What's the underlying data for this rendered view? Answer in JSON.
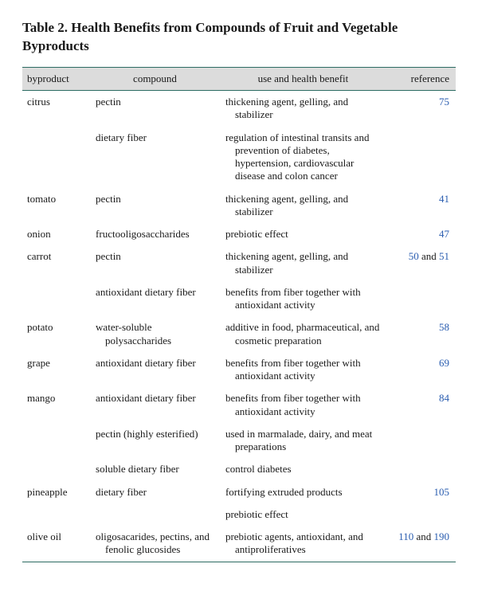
{
  "title": "Table 2. Health Benefits from Compounds of Fruit and Vegetable Byproducts",
  "columns": [
    "byproduct",
    "compound",
    "use and health benefit",
    "reference"
  ],
  "colors": {
    "rule": "#2c6b62",
    "header_bg": "#dcdcdc",
    "link": "#2a5db0",
    "text": "#1a1a1a",
    "background": "#ffffff"
  },
  "typography": {
    "title_fontsize_pt": 13,
    "body_fontsize_pt": 10,
    "font_family": "Georgia / serif"
  },
  "rows": [
    {
      "byproduct": "citrus",
      "compound": "pectin",
      "use": "thickening agent, gelling, and stabilizer",
      "reference": [
        {
          "t": "link",
          "v": "75"
        }
      ]
    },
    {
      "byproduct": "",
      "compound": "dietary fiber",
      "use": "regulation of intestinal transits and prevention of diabetes, hypertension, cardiovascular disease and colon cancer",
      "reference": []
    },
    {
      "byproduct": "tomato",
      "compound": "pectin",
      "use": "thickening agent, gelling, and stabilizer",
      "reference": [
        {
          "t": "link",
          "v": "41"
        }
      ]
    },
    {
      "byproduct": "onion",
      "compound": "fructooligosaccharides",
      "use": "prebiotic effect",
      "reference": [
        {
          "t": "link",
          "v": "47"
        }
      ]
    },
    {
      "byproduct": "carrot",
      "compound": "pectin",
      "use": "thickening agent, gelling, and stabilizer",
      "reference": [
        {
          "t": "link",
          "v": "50"
        },
        {
          "t": "text",
          "v": " and "
        },
        {
          "t": "link",
          "v": "51"
        }
      ]
    },
    {
      "byproduct": "",
      "compound": "antioxidant dietary fiber",
      "use": "benefits from fiber together with antioxidant activity",
      "reference": []
    },
    {
      "byproduct": "potato",
      "compound": "water-soluble polysaccharides",
      "use": "additive in food, pharmaceutical, and cosmetic preparation",
      "reference": [
        {
          "t": "link",
          "v": "58"
        }
      ]
    },
    {
      "byproduct": "grape",
      "compound": "antioxidant dietary fiber",
      "use": "benefits from fiber together with antioxidant activity",
      "reference": [
        {
          "t": "link",
          "v": "69"
        }
      ]
    },
    {
      "byproduct": "mango",
      "compound": "antioxidant dietary fiber",
      "use": "benefits from fiber together with antioxidant activity",
      "reference": [
        {
          "t": "link",
          "v": "84"
        }
      ]
    },
    {
      "byproduct": "",
      "compound": "pectin (highly esterified)",
      "use": "used in marmalade, dairy, and meat preparations",
      "reference": []
    },
    {
      "byproduct": "",
      "compound": "soluble dietary fiber",
      "use": "control diabetes",
      "reference": []
    },
    {
      "byproduct": "pineapple",
      "compound": "dietary fiber",
      "use": "fortifying extruded products",
      "reference": [
        {
          "t": "link",
          "v": "105"
        }
      ]
    },
    {
      "byproduct": "",
      "compound": "",
      "use": "prebiotic effect",
      "reference": []
    },
    {
      "byproduct": "olive oil",
      "compound": "oligosacarides, pectins, and fenolic glucosides",
      "use": "prebiotic agents, antioxidant, and antiproliferatives",
      "reference": [
        {
          "t": "link",
          "v": "110"
        },
        {
          "t": "text",
          "v": " and "
        },
        {
          "t": "link",
          "v": "190"
        }
      ]
    }
  ]
}
